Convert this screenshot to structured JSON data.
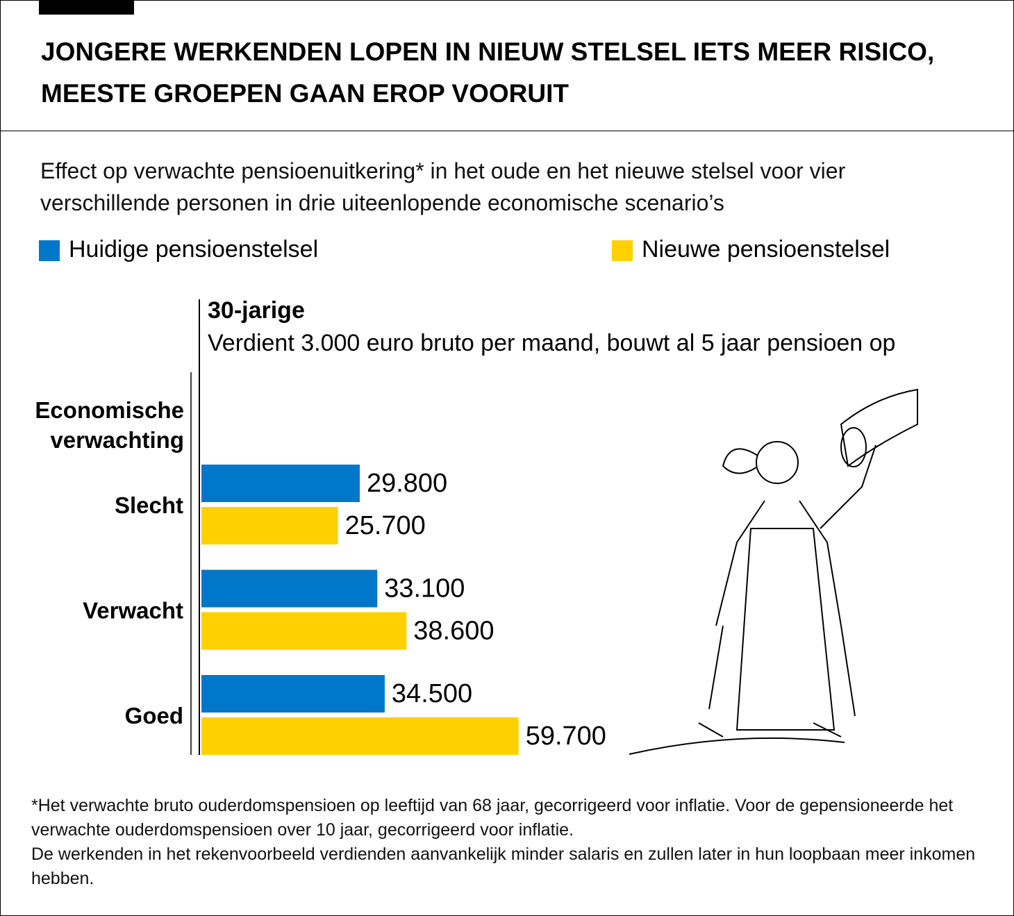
{
  "chart_data": {
    "type": "bar",
    "orientation": "horizontal",
    "title": "JONGERE WERKENDEN LOPEN IN NIEUW STELSEL IETS MEER RISICO, MEESTE GROEPEN GAAN EROP VOORUIT",
    "subtitle": "Effect op verwachte pensioenuitkering* in het oude en het nieuwe stelsel voor vier verschillende personen in drie uiteenlopende economische scenario’s",
    "group_title": "30-jarige",
    "group_subtitle": "Verdient 3.000 euro bruto per maand, bouwt al 5 jaar pensioen op",
    "y_axis_label": "Economische verwachting",
    "categories": [
      "Slecht",
      "Verwacht",
      "Goed"
    ],
    "series": [
      {
        "name": "Huidige pensioenstelsel",
        "color": "#0077c8",
        "values": [
          29800,
          33100,
          34500
        ],
        "value_labels": [
          "29.800",
          "33.100",
          "34.500"
        ]
      },
      {
        "name": "Nieuwe pensioenstelsel",
        "color": "#ffd100",
        "values": [
          25700,
          38600,
          59700
        ],
        "value_labels": [
          "25.700",
          "38.600",
          "59.700"
        ]
      }
    ],
    "xlim": [
      0,
      60000
    ],
    "footnote": [
      "*Het verwachte bruto ouderdomspensioen op leeftijd van 68 jaar, gecorrigeerd voor inflatie. Voor de gepensioneerde het verwachte ouderdomspensioen over 10 jaar, gecorrigeerd voor inflatie.",
      "De werkenden in het rekenvoorbeeld verdienden aanvankelijk minder salaris en zullen later in hun loopbaan meer inkomen hebben."
    ]
  }
}
